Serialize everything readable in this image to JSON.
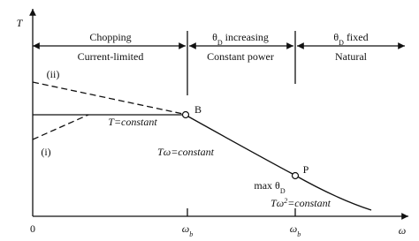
{
  "axes": {
    "y_label": [
      {
        "text": "T"
      }
    ],
    "x_label": [
      {
        "text": "ω"
      }
    ],
    "origin": [
      {
        "text": "0"
      }
    ],
    "x_marks": [
      [
        {
          "text": "ω"
        },
        {
          "text": "b",
          "sub": true
        }
      ],
      [
        {
          "text": "ω"
        },
        {
          "text": "b",
          "sub": true
        }
      ]
    ]
  },
  "regions": {
    "top": [
      [
        {
          "text": "Chopping"
        }
      ],
      [
        {
          "text": "θ"
        },
        {
          "text": "D",
          "sub": true
        },
        {
          "text": " increasing"
        }
      ],
      [
        {
          "text": "θ"
        },
        {
          "text": "D",
          "sub": true
        },
        {
          "text": " fixed"
        }
      ]
    ],
    "bottom": [
      [
        {
          "text": "Current-limited"
        }
      ],
      [
        {
          "text": "Constant power"
        }
      ],
      [
        {
          "text": "Natural"
        }
      ]
    ]
  },
  "curve_labels": {
    "upper": [
      {
        "text": "(ii)"
      }
    ],
    "lower": [
      {
        "text": "(i)"
      }
    ],
    "constant_torque": [
      {
        "text": "T"
      },
      {
        "text": "=constant"
      }
    ],
    "point_b": [
      {
        "text": "B"
      }
    ],
    "constant_power": [
      {
        "text": "Tω"
      },
      {
        "text": "=constant"
      }
    ],
    "point_p": [
      {
        "text": "P"
      }
    ],
    "max_angle": [
      {
        "text": "max θ"
      },
      {
        "text": "D",
        "sub": true
      }
    ],
    "natural": [
      {
        "text": "Tω"
      },
      {
        "text": "2",
        "sup": true
      },
      {
        "text": "=constant"
      }
    ]
  }
}
